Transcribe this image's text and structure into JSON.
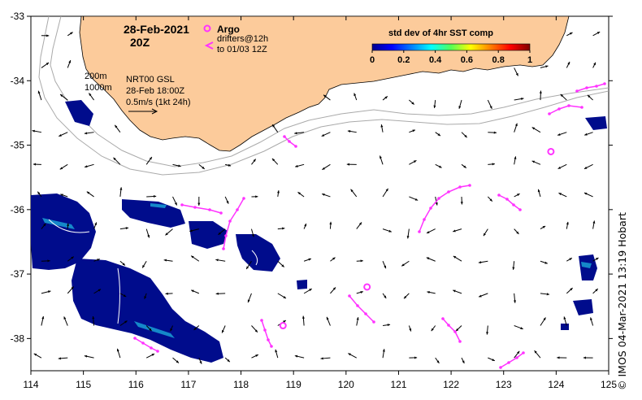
{
  "date_title": "28-Feb-2021",
  "time_title": "20Z",
  "argo_label": "Argo",
  "drifters_label": "drifters@12h",
  "drifters_label2": "to 01/03 12Z",
  "colorbar_title": "std dev of 4hr SST comp",
  "colorbar_ticks": [
    "0",
    "0.2",
    "0.4",
    "0.6",
    "0.8",
    "1"
  ],
  "isobath_labels": [
    "200m",
    "1000m"
  ],
  "product_label": "NRT00 GSL",
  "product_time": "28-Feb 18:00Z",
  "arrow_scale_label": "0.5m/s (1kt 24h)",
  "credit": "© IMOS 04-Mar-2021 13:19 Hobart",
  "x_ticks": [
    "114",
    "115",
    "116",
    "117",
    "118",
    "119",
    "120",
    "121",
    "122",
    "123",
    "124",
    "125"
  ],
  "y_ticks": [
    "-33",
    "-34",
    "-35",
    "-36",
    "-37",
    "-38"
  ],
  "colors": {
    "land": "#fccb9b",
    "argo": "#ff33ff",
    "drifter": "#ff33ff",
    "sst_low": "#000c8c",
    "isobath": "#aaaaaa"
  },
  "map_extent": {
    "lon": [
      114,
      125
    ],
    "lat": [
      -38.5,
      -33
    ]
  },
  "argo_floats": [
    {
      "lon": 123.9,
      "lat": -35.1
    },
    {
      "lon": 120.4,
      "lat": -37.2
    },
    {
      "lon": 118.8,
      "lat": -37.8
    }
  ],
  "chart_data": {
    "type": "map",
    "x": [
      114,
      115,
      116,
      117,
      118,
      119,
      120,
      121,
      122,
      123,
      124,
      125
    ],
    "xlim": [
      114,
      125
    ],
    "ylim": [
      -38.5,
      -33
    ]
  }
}
